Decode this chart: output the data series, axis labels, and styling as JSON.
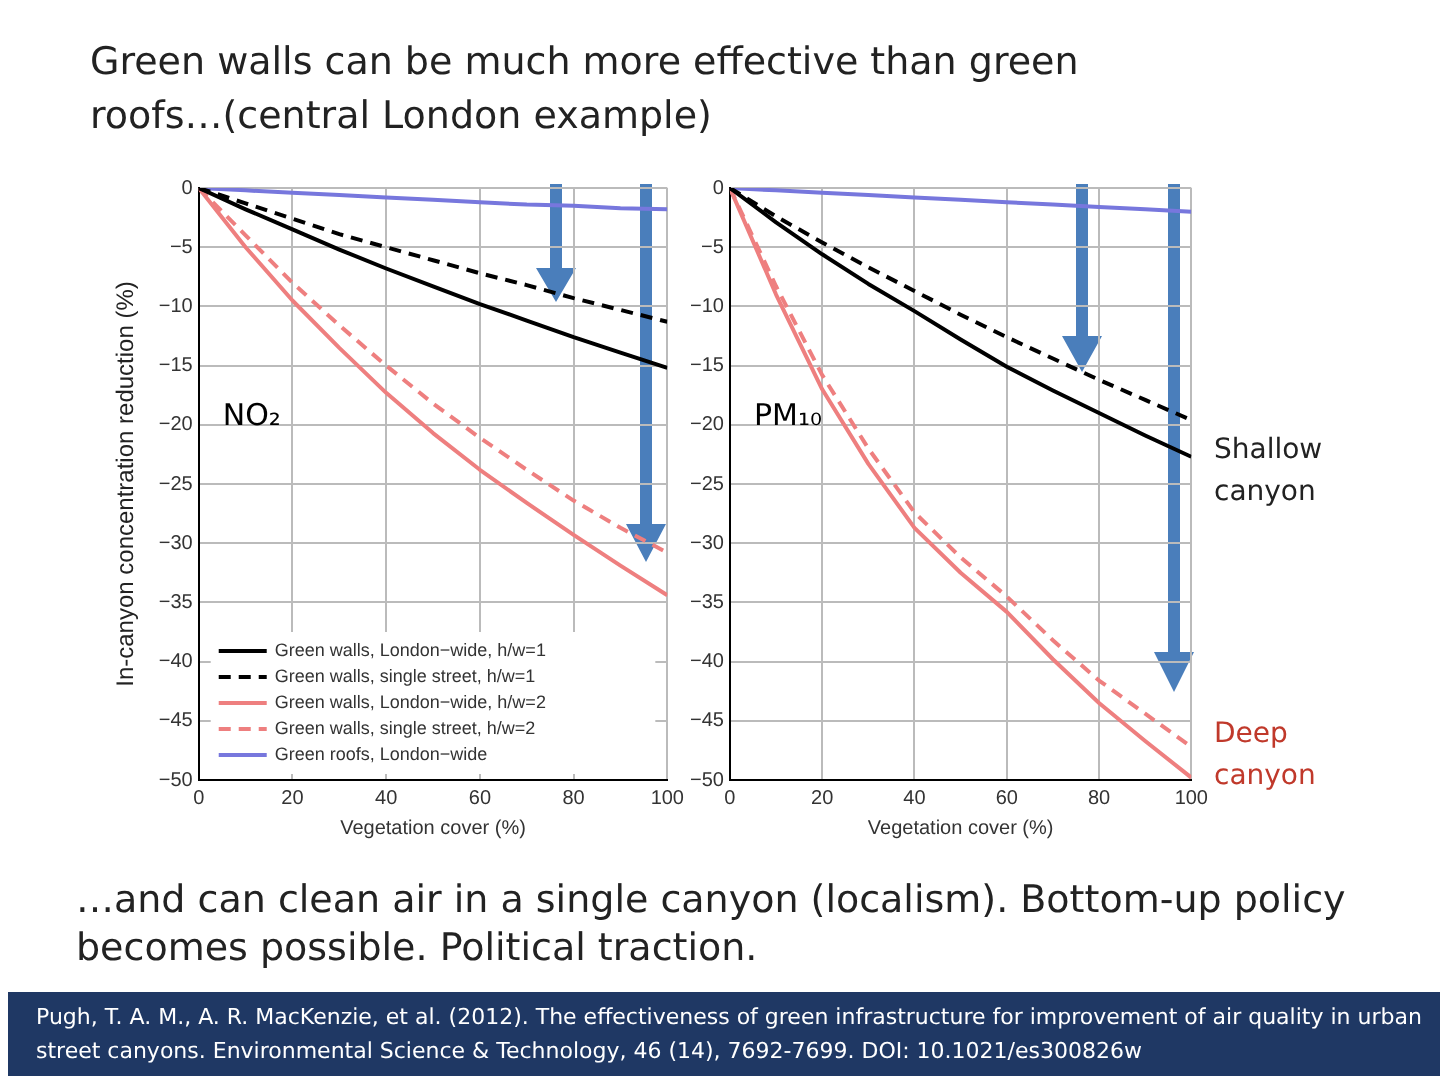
{
  "chart_data": [
    {
      "type": "line",
      "title": "Green walls can be much more effective than green roofs…(central London example)",
      "ylabel": "In-canyon concentration reduction (%)",
      "xlabel": "Vegetation cover (%)",
      "annotations": [
        "NO₂",
        "…and can clean air in a single canyon (localism). Bottom-up policy becomes possible. Political traction.",
        "Pugh, T. A. M., A. R. MacKenzie, et al. (2012). The effectiveness of green infrastructure for improvement of air quality in urban street canyons. Environmental Science & Technology, 46 (14), 7692-7699. DOI: 10.1021/es300826w"
      ],
      "x": [
        0,
        10,
        20,
        30,
        40,
        50,
        60,
        70,
        80,
        90,
        100
      ],
      "xlim": [
        0,
        100
      ],
      "xticks": [
        0,
        20,
        40,
        60,
        80,
        100
      ],
      "ylim": [
        -50,
        0
      ],
      "yticks": [
        -50,
        -45,
        -40,
        -35,
        -30,
        -25,
        -20,
        -15,
        -10,
        -5,
        0
      ],
      "grid": true,
      "legend": "bottom",
      "marker": "none",
      "series": [
        {
          "name": "Green walls, London−wide, h/w=1",
          "color": "#000000",
          "line_style": "solid",
          "values": [
            0,
            -1.8,
            -3.5,
            -5.2,
            -6.8,
            -8.3,
            -9.8,
            -11.2,
            -12.6,
            -13.9,
            -15.2
          ]
        },
        {
          "name": "Green walls, single street, h/w=1",
          "color": "#000000",
          "line_style": "dashed",
          "values": [
            0,
            -1.3,
            -2.6,
            -3.9,
            -5,
            -6.1,
            -7.2,
            -8.2,
            -9.3,
            -10.3,
            -11.3
          ]
        },
        {
          "name": "Green walls, London−wide, h/w=2",
          "color": "#ee7f7f",
          "line_style": "solid",
          "values": [
            0,
            -5,
            -9.5,
            -13.5,
            -17.3,
            -20.7,
            -23.8,
            -26.6,
            -29.3,
            -31.9,
            -34.4
          ]
        },
        {
          "name": "Green walls, single street, h/w=2",
          "color": "#ee7f7f",
          "line_style": "dashed",
          "values": [
            0,
            -4,
            -8,
            -11.6,
            -15,
            -18.2,
            -21.1,
            -23.8,
            -26.4,
            -28.7,
            -30.8
          ]
        },
        {
          "name": "Green roofs, London−wide",
          "color": "#7777dd",
          "line_style": "solid",
          "values": [
            0,
            -0.2,
            -0.4,
            -0.6,
            -0.8,
            -1,
            -1.2,
            -1.4,
            -1.5,
            -1.7,
            -1.8
          ]
        }
      ]
    },
    {
      "type": "line",
      "xlabel": "Vegetation cover (%)",
      "annotations": [
        "PM₁₀",
        "Shallow canyon",
        "Deep canyon"
      ],
      "x": [
        0,
        10,
        20,
        30,
        40,
        50,
        60,
        70,
        80,
        90,
        100
      ],
      "xlim": [
        0,
        100
      ],
      "xticks": [
        0,
        20,
        40,
        60,
        80,
        100
      ],
      "ylim": [
        -50,
        0
      ],
      "yticks": [
        -50,
        -45,
        -40,
        -35,
        -30,
        -25,
        -20,
        -15,
        -10,
        -5,
        0
      ],
      "grid": true,
      "marker": "none",
      "series": [
        {
          "color": "#000000",
          "line_style": "solid",
          "values": [
            0,
            -2.9,
            -5.6,
            -8.1,
            -10.4,
            -12.8,
            -15.1,
            -17.1,
            -19,
            -20.9,
            -22.7
          ]
        },
        {
          "color": "#000000",
          "line_style": "dashed",
          "values": [
            0,
            -2.4,
            -4.6,
            -6.7,
            -8.7,
            -10.7,
            -12.6,
            -14.4,
            -16.2,
            -17.9,
            -19.6
          ]
        },
        {
          "color": "#ee7f7f",
          "line_style": "solid",
          "values": [
            0,
            -9,
            -17,
            -23.3,
            -28.7,
            -32.5,
            -35.8,
            -39.8,
            -43.5,
            -46.7,
            -49.8
          ]
        },
        {
          "color": "#ee7f7f",
          "line_style": "dashed",
          "values": [
            0,
            -8.3,
            -15.8,
            -22,
            -27.4,
            -31.2,
            -34.5,
            -38.2,
            -41.6,
            -44.4,
            -47.2
          ]
        },
        {
          "color": "#7777dd",
          "line_style": "solid",
          "values": [
            0,
            -0.2,
            -0.4,
            -0.6,
            -0.8,
            -1,
            -1.2,
            -1.4,
            -1.6,
            -1.8,
            -2
          ]
        }
      ]
    }
  ]
}
